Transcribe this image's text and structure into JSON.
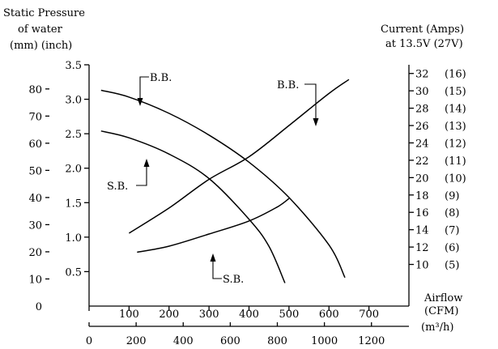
{
  "chart_data": {
    "type": "line",
    "title_left": [
      "Static Pressure",
      "of water",
      "(mm) (inch)"
    ],
    "title_right": [
      "Current (Amps)",
      "at 13.5V (27V)"
    ],
    "x_label_cfm": [
      "Airflow",
      "(CFM)"
    ],
    "x_label_m3h": "(m³/h)",
    "x_cfm": {
      "ticks": [
        0,
        100,
        200,
        300,
        400,
        500,
        600,
        700
      ],
      "range": [
        0,
        800
      ]
    },
    "x_m3h": {
      "ticks": [
        0,
        200,
        400,
        600,
        800,
        1000,
        1200
      ]
    },
    "y_inch": {
      "ticks": [
        "0.5",
        "1.0",
        "1.5",
        "2.0",
        "2.5",
        "3.0",
        "3.5"
      ]
    },
    "y_mm": {
      "ticks": [
        "10",
        "20",
        "30",
        "40",
        "50",
        "60",
        "70",
        "80"
      ],
      "range": [
        0,
        88.9
      ]
    },
    "y_current": {
      "ticks": [
        "10",
        "12",
        "14",
        "16",
        "18",
        "20",
        "22",
        "24",
        "26",
        "28",
        "30",
        "32"
      ],
      "paren": [
        "(5)",
        "(6)",
        "(7)",
        "(8)",
        "(9)",
        "(10)",
        "(11)",
        "(12)",
        "(13)",
        "(14)",
        "(15)",
        "(16)"
      ],
      "range": [
        5.2,
        33.0
      ]
    },
    "series": [
      {
        "name": "B.B.",
        "kind": "pressure",
        "x": [
          30,
          100,
          200,
          300,
          400,
          500,
          600,
          640
        ],
        "y": [
          79.5,
          77,
          71,
          63,
          53,
          40,
          22.5,
          10.5
        ]
      },
      {
        "name": "S.B.",
        "kind": "pressure",
        "x": [
          30,
          100,
          200,
          300,
          400,
          450,
          490
        ],
        "y": [
          64.5,
          62,
          56,
          47,
          32,
          22,
          8.5
        ]
      },
      {
        "name": "B.B.",
        "kind": "current",
        "x": [
          100,
          200,
          300,
          400,
          500,
          600,
          650
        ],
        "y": [
          13.6,
          16.5,
          19.8,
          22.4,
          26.0,
          29.7,
          31.3
        ]
      },
      {
        "name": "S.B.",
        "kind": "current",
        "x": [
          120,
          200,
          300,
          400,
          470,
          500
        ],
        "y": [
          11.4,
          12.1,
          13.5,
          15.0,
          16.6,
          17.6
        ]
      }
    ],
    "annotations": [
      {
        "text": "B.B."
      },
      {
        "text": "S.B."
      },
      {
        "text": "B.B."
      },
      {
        "text": "S.B."
      }
    ]
  }
}
